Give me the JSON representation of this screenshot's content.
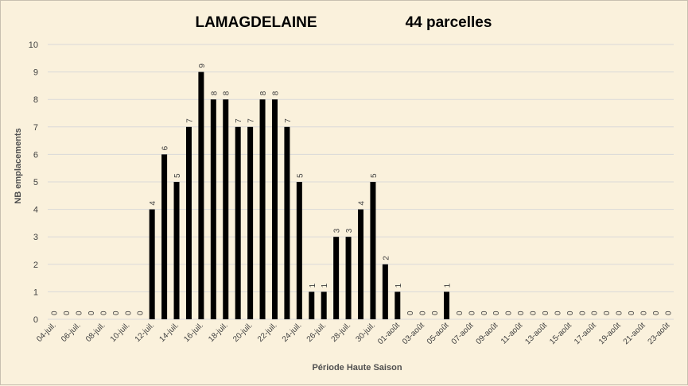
{
  "chart_data": {
    "type": "bar",
    "title": "LAMAGDELAINE",
    "subtitle": "44 parcelles",
    "xlabel": "Période Haute Saison",
    "ylabel": "NB emplacements",
    "ylim": [
      0,
      10
    ],
    "yticks": [
      0,
      1,
      2,
      3,
      4,
      5,
      6,
      7,
      8,
      9,
      10
    ],
    "grid": true,
    "legend": "none",
    "bar_color": "#000000",
    "categories": [
      "04-juil.",
      "05-juil.",
      "06-juil.",
      "07-juil.",
      "08-juil.",
      "09-juil.",
      "10-juil.",
      "11-juil.",
      "12-juil.",
      "13-juil.",
      "14-juil.",
      "15-juil.",
      "16-juil.",
      "17-juil.",
      "18-juil.",
      "19-juil.",
      "20-juil.",
      "21-juil.",
      "22-juil.",
      "23-juil.",
      "24-juil.",
      "25-juil.",
      "26-juil.",
      "27-juil.",
      "28-juil.",
      "29-juil.",
      "30-juil.",
      "31-juil.",
      "01-août",
      "02-août",
      "03-août",
      "04-août",
      "05-août",
      "06-août",
      "07-août",
      "08-août",
      "09-août",
      "10-août",
      "11-août",
      "12-août",
      "13-août",
      "14-août",
      "15-août",
      "16-août",
      "17-août",
      "18-août",
      "19-août",
      "20-août",
      "21-août",
      "22-août",
      "23-août"
    ],
    "values": [
      0,
      0,
      0,
      0,
      0,
      0,
      0,
      0,
      4,
      6,
      5,
      7,
      9,
      8,
      8,
      7,
      7,
      8,
      8,
      7,
      5,
      1,
      1,
      3,
      3,
      4,
      5,
      2,
      1,
      0,
      0,
      0,
      1,
      0,
      0,
      0,
      0,
      0,
      0,
      0,
      0,
      0,
      0,
      0,
      0,
      0,
      0,
      0,
      0,
      0,
      0
    ]
  }
}
